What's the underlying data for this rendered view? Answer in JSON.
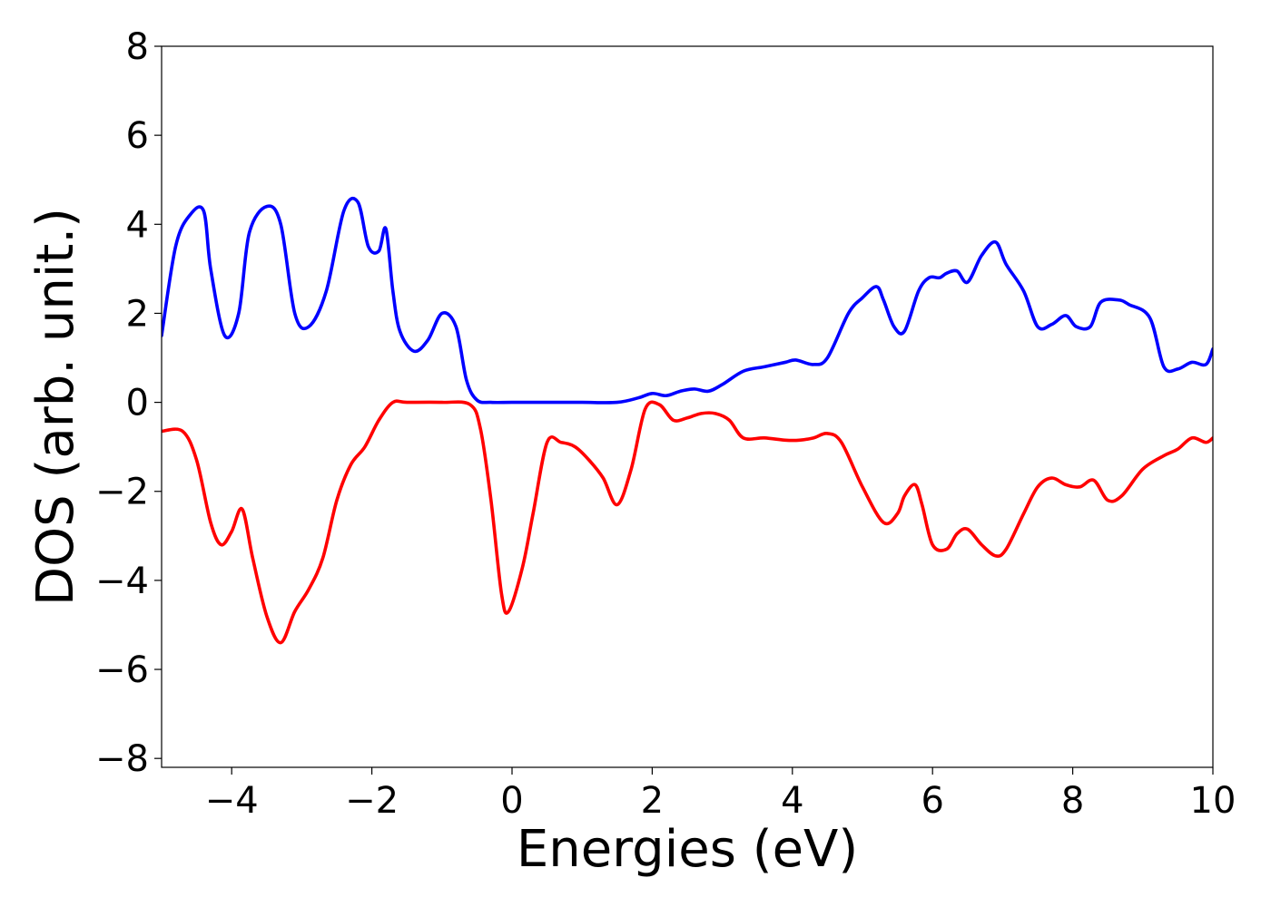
{
  "chart_data": {
    "type": "line",
    "title": "",
    "xlabel": "Energies (eV)",
    "ylabel": "DOS (arb. unit.)",
    "xlim": [
      -5,
      10
    ],
    "ylim": [
      -8.2,
      8
    ],
    "xticks": [
      -4,
      -2,
      0,
      2,
      4,
      6,
      8,
      10
    ],
    "xtick_labels": [
      "−4",
      "−2",
      "0",
      "2",
      "4",
      "6",
      "8",
      "10"
    ],
    "yticks": [
      -8,
      -6,
      -4,
      -2,
      0,
      2,
      4,
      6,
      8
    ],
    "ytick_labels": [
      "−8",
      "−6",
      "−4",
      "−2",
      "0",
      "2",
      "4",
      "6",
      "8"
    ],
    "grid": false,
    "legend": "none",
    "series": [
      {
        "color": "#0000ff",
        "x": [
          -5.0,
          -4.8,
          -4.6,
          -4.4,
          -4.3,
          -4.1,
          -3.9,
          -3.75,
          -3.5,
          -3.3,
          -3.1,
          -2.9,
          -2.65,
          -2.4,
          -2.2,
          -2.05,
          -1.9,
          -1.8,
          -1.7,
          -1.6,
          -1.4,
          -1.2,
          -1.0,
          -0.8,
          -0.65,
          -0.5,
          -0.3,
          0.0,
          0.5,
          1.0,
          1.5,
          1.8,
          2.0,
          2.2,
          2.4,
          2.6,
          2.8,
          3.0,
          3.3,
          3.6,
          3.9,
          4.05,
          4.3,
          4.5,
          4.8,
          5.0,
          5.2,
          5.3,
          5.45,
          5.6,
          5.8,
          5.95,
          6.1,
          6.2,
          6.35,
          6.5,
          6.7,
          6.9,
          7.05,
          7.3,
          7.5,
          7.7,
          7.9,
          8.05,
          8.25,
          8.4,
          8.65,
          8.8,
          9.1,
          9.3,
          9.5,
          9.7,
          9.9,
          10.0
        ],
        "y": [
          1.5,
          3.5,
          4.2,
          4.3,
          3.0,
          1.5,
          2.0,
          3.8,
          4.4,
          4.0,
          2.0,
          1.7,
          2.5,
          4.3,
          4.5,
          3.5,
          3.4,
          3.9,
          2.5,
          1.6,
          1.15,
          1.4,
          2.0,
          1.7,
          0.5,
          0.05,
          0.0,
          0.0,
          0.0,
          0.0,
          0.0,
          0.1,
          0.2,
          0.15,
          0.25,
          0.3,
          0.25,
          0.4,
          0.7,
          0.8,
          0.9,
          0.95,
          0.85,
          1.0,
          2.0,
          2.35,
          2.6,
          2.3,
          1.7,
          1.6,
          2.5,
          2.8,
          2.8,
          2.9,
          2.95,
          2.7,
          3.3,
          3.6,
          3.1,
          2.5,
          1.7,
          1.75,
          1.95,
          1.7,
          1.7,
          2.25,
          2.3,
          2.2,
          1.9,
          0.8,
          0.75,
          0.9,
          0.85,
          1.2
        ]
      },
      {
        "color": "#ff0000",
        "x": [
          -5.0,
          -4.7,
          -4.5,
          -4.3,
          -4.15,
          -4.0,
          -3.85,
          -3.7,
          -3.5,
          -3.3,
          -3.1,
          -2.9,
          -2.7,
          -2.5,
          -2.3,
          -2.1,
          -1.9,
          -1.7,
          -1.5,
          -1.0,
          -0.6,
          -0.45,
          -0.3,
          -0.15,
          -0.05,
          0.15,
          0.3,
          0.5,
          0.7,
          0.9,
          1.1,
          1.3,
          1.5,
          1.7,
          1.9,
          2.1,
          2.3,
          2.5,
          2.7,
          2.9,
          3.1,
          3.3,
          3.6,
          3.9,
          4.1,
          4.3,
          4.5,
          4.7,
          5.0,
          5.3,
          5.5,
          5.6,
          5.75,
          5.85,
          6.0,
          6.2,
          6.35,
          6.5,
          6.7,
          6.9,
          7.05,
          7.3,
          7.5,
          7.7,
          7.9,
          8.1,
          8.3,
          8.5,
          8.7,
          9.0,
          9.3,
          9.5,
          9.7,
          9.9,
          10.0
        ],
        "y": [
          -0.65,
          -0.65,
          -1.3,
          -2.7,
          -3.2,
          -2.9,
          -2.4,
          -3.5,
          -4.8,
          -5.4,
          -4.7,
          -4.2,
          -3.5,
          -2.2,
          -1.4,
          -1.0,
          -0.4,
          0.0,
          0.0,
          0.0,
          -0.05,
          -0.6,
          -2.2,
          -4.3,
          -4.7,
          -3.7,
          -2.5,
          -0.9,
          -0.9,
          -1.0,
          -1.3,
          -1.7,
          -2.3,
          -1.5,
          -0.15,
          -0.05,
          -0.4,
          -0.35,
          -0.25,
          -0.25,
          -0.4,
          -0.8,
          -0.8,
          -0.85,
          -0.85,
          -0.8,
          -0.7,
          -0.9,
          -1.9,
          -2.7,
          -2.5,
          -2.1,
          -1.85,
          -2.3,
          -3.2,
          -3.3,
          -2.95,
          -2.85,
          -3.2,
          -3.45,
          -3.3,
          -2.5,
          -1.9,
          -1.7,
          -1.85,
          -1.9,
          -1.75,
          -2.2,
          -2.1,
          -1.5,
          -1.2,
          -1.05,
          -0.8,
          -0.9,
          -0.8
        ]
      }
    ]
  }
}
